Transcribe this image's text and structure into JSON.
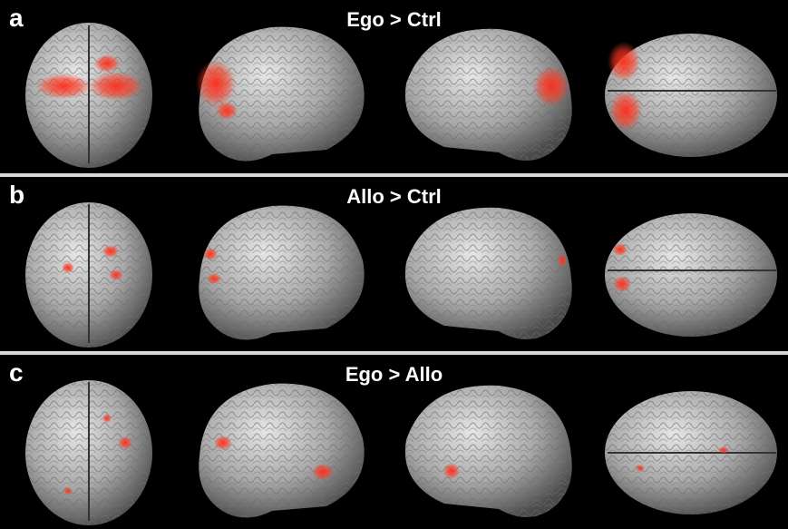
{
  "panels": [
    {
      "id": "a",
      "letter": "a",
      "title": "Ego > Ctrl"
    },
    {
      "id": "b",
      "letter": "b",
      "title": "Allo > Ctrl"
    },
    {
      "id": "c",
      "letter": "c",
      "title": "Ego > Allo"
    }
  ],
  "colors": {
    "background": "#000000",
    "brain": "#a8a8a8",
    "activation": "#ff2a1a",
    "divider": "#d8d8d8"
  },
  "views": [
    "posterior",
    "left-lateral",
    "right-lateral",
    "dorsal"
  ]
}
